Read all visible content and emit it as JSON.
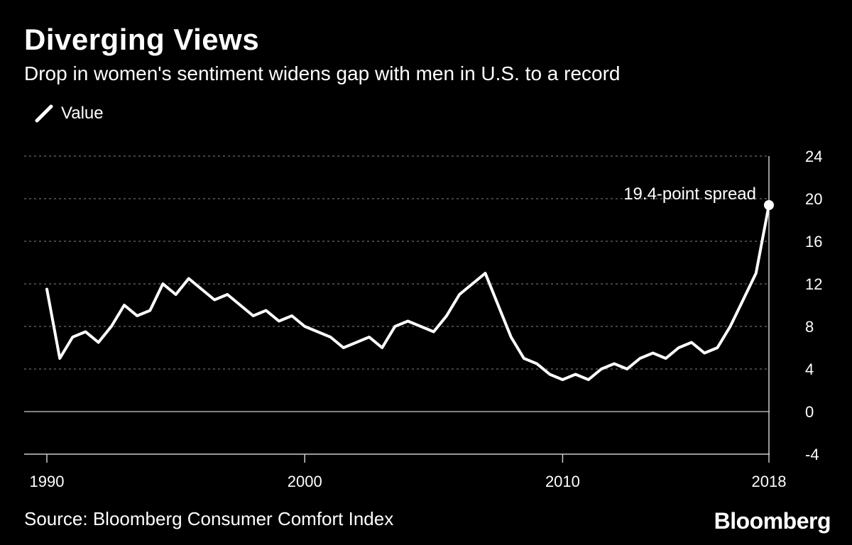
{
  "title": "Diverging Views",
  "subtitle": "Drop in women's sentiment widens gap with men in U.S. to a record",
  "source": "Source: Bloomberg Consumer Comfort Index",
  "brand": "Bloomberg",
  "chart_data": {
    "type": "line",
    "title": "Diverging Views",
    "subtitle": "Drop in women's sentiment widens gap with men in U.S. to a record",
    "xlabel": "",
    "ylabel": "",
    "xlim": [
      1990,
      2018
    ],
    "ylim": [
      -4,
      24
    ],
    "x_ticks": [
      "1990",
      "2000",
      "2010",
      "2018"
    ],
    "y_ticks": [
      24,
      20,
      16,
      12,
      8,
      4,
      0,
      -4
    ],
    "grid": true,
    "grid_style": "dotted",
    "legend_position": "top-left",
    "line_color": "#ffffff",
    "series": [
      {
        "name": "Value",
        "x": [
          1990.0,
          1990.5,
          1991.0,
          1991.5,
          1992.0,
          1992.5,
          1993.0,
          1993.5,
          1994.0,
          1994.5,
          1995.0,
          1995.5,
          1996.0,
          1996.5,
          1997.0,
          1997.5,
          1998.0,
          1998.5,
          1999.0,
          1999.5,
          2000.0,
          2000.5,
          2001.0,
          2001.5,
          2002.0,
          2002.5,
          2003.0,
          2003.5,
          2004.0,
          2004.5,
          2005.0,
          2005.5,
          2006.0,
          2006.5,
          2007.0,
          2007.5,
          2008.0,
          2008.5,
          2009.0,
          2009.5,
          2010.0,
          2010.5,
          2011.0,
          2011.5,
          2012.0,
          2012.5,
          2013.0,
          2013.5,
          2014.0,
          2014.5,
          2015.0,
          2015.5,
          2016.0,
          2016.5,
          2017.0,
          2017.5,
          2018.0
        ],
        "values": [
          11.5,
          5.0,
          7.0,
          7.5,
          6.5,
          8.0,
          10.0,
          9.0,
          9.5,
          12.0,
          11.0,
          12.5,
          11.5,
          10.5,
          11.0,
          10.0,
          9.0,
          9.5,
          8.5,
          9.0,
          8.0,
          7.5,
          7.0,
          6.0,
          6.5,
          7.0,
          6.0,
          8.0,
          8.5,
          8.0,
          7.5,
          9.0,
          11.0,
          12.0,
          13.0,
          10.0,
          7.0,
          5.0,
          4.5,
          3.5,
          3.0,
          3.5,
          3.0,
          4.0,
          4.5,
          4.0,
          5.0,
          5.5,
          5.0,
          6.0,
          6.5,
          5.5,
          6.0,
          8.0,
          10.5,
          13.0,
          19.4
        ]
      }
    ],
    "annotations": [
      {
        "text": "19.4-point spread",
        "x": 2018.0,
        "y": 19.4
      }
    ]
  }
}
